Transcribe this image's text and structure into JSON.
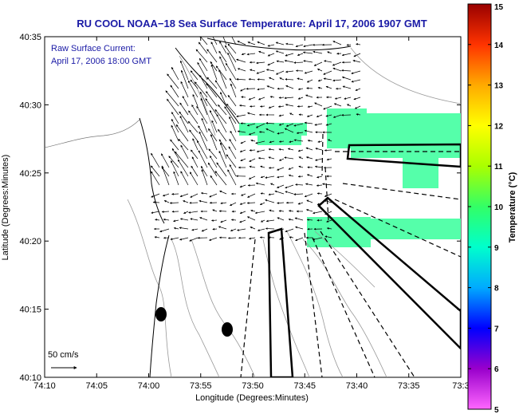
{
  "chart_data": {
    "type": "map",
    "title": "RU COOL  NOAA−18  Sea Surface Temperature:  April 17, 2006 1907 GMT",
    "annotation": [
      "Raw Surface Current:",
      "April 17, 2006 18:00 GMT"
    ],
    "xlabel": "Longitude (Degrees:Minutes)",
    "ylabel": "Latitude (Degrees:Minutes)",
    "x_ticks": [
      "74:10",
      "74:05",
      "74:00",
      "73:55",
      "73:50",
      "73:45",
      "73:40",
      "73:35",
      "73:3"
    ],
    "y_ticks": [
      "40:35",
      "40:30",
      "40:25",
      "40:20",
      "40:15",
      "40:10"
    ],
    "xlim": [
      "74:10",
      "73:30"
    ],
    "ylim": [
      "40:10",
      "40:35"
    ],
    "scale_label": "50 cm/s",
    "colorbar": {
      "label": "Temperature (°C)",
      "range": [
        5,
        15
      ],
      "ticks": [
        "5",
        "6",
        "7",
        "8",
        "9",
        "10",
        "11",
        "12",
        "13",
        "14",
        "15"
      ],
      "colors": [
        "#ff66ff",
        "#9900cc",
        "#0000ff",
        "#00aaff",
        "#00ffcc",
        "#33ff66",
        "#aaff00",
        "#ffff00",
        "#ffaa00",
        "#ff3300",
        "#990000"
      ]
    },
    "sst_value_approx": 9,
    "sst_color": "#55ffaa"
  }
}
